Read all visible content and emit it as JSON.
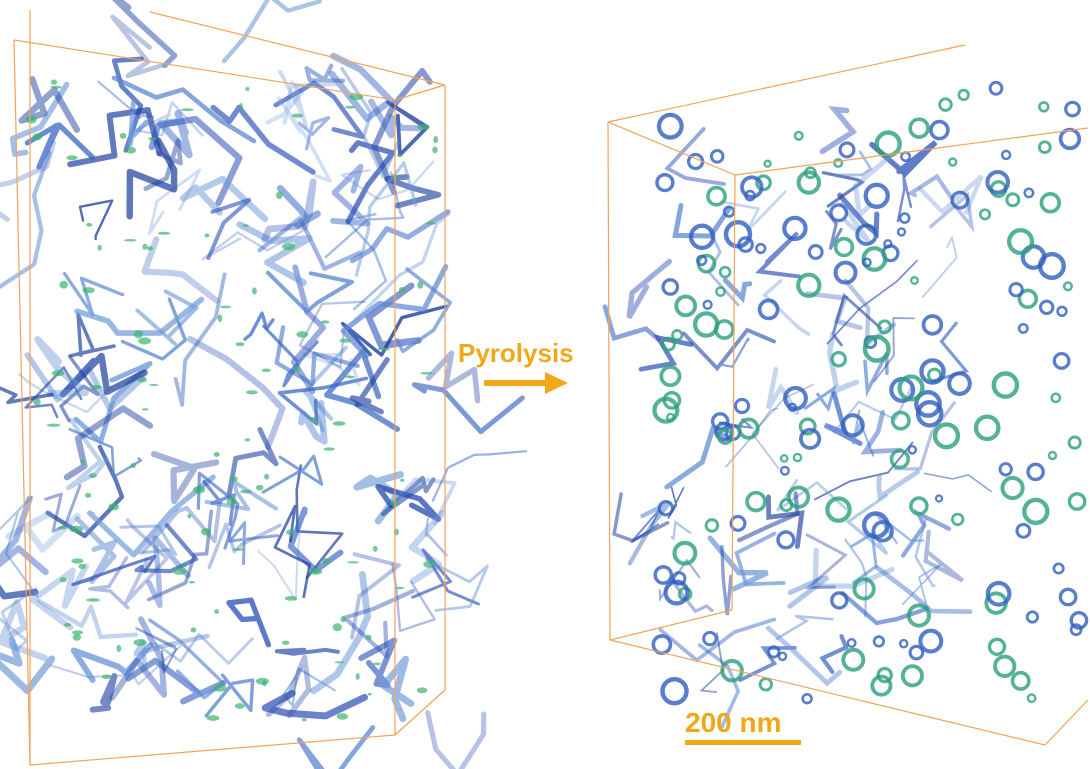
{
  "labels": {
    "process": "Pyrolysis",
    "scale_bar": "200 nm"
  }
}
